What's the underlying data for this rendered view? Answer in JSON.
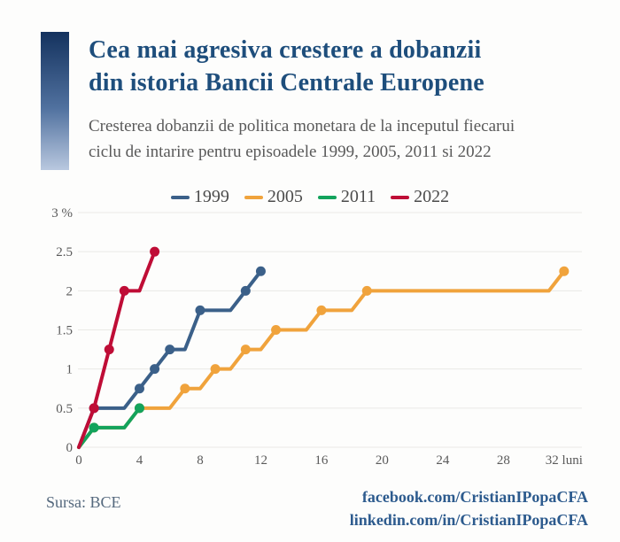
{
  "header": {
    "title_line1": "Cea mai agresiva crestere a dobanzii",
    "title_line2": "din istoria Bancii Centrale Europene",
    "subtitle_line1": "Cresterea dobanzii de politica monetara de la inceputul fiecarui",
    "subtitle_line2": "ciclu de intarire pentru episoadele 1999, 2005, 2011 si 2022"
  },
  "footer": {
    "source": "Sursa: BCE",
    "facebook": "facebook.com/CristianIPopaCFA",
    "linkedin": "linkedin.com/in/CristianIPopaCFA"
  },
  "colors": {
    "background": "#fdfdfc",
    "title": "#1e4e7c",
    "subtitle": "#595959",
    "legend_text": "#4c4c4c",
    "axis_text": "#5a5a5a",
    "grid": "#eae9e6",
    "source_text": "#54687d",
    "links": "#2d5b8e",
    "bar_top": "#14325e",
    "bar_bottom": "#b9c8df"
  },
  "chart_data": {
    "type": "line",
    "title": "Cresterea dobanzii de politica monetara de la inceputul fiecarui ciclu de intarire",
    "xlabel": "luni",
    "ylabel": "%",
    "xlim": [
      0,
      33
    ],
    "ylim": [
      0,
      3
    ],
    "grid": "horizontal",
    "legend_position": "top-center",
    "x_ticks": [
      {
        "value": 0,
        "label": "0"
      },
      {
        "value": 4,
        "label": "4"
      },
      {
        "value": 8,
        "label": "8"
      },
      {
        "value": 12,
        "label": "12"
      },
      {
        "value": 16,
        "label": "16"
      },
      {
        "value": 20,
        "label": "20"
      },
      {
        "value": 24,
        "label": "24"
      },
      {
        "value": 28,
        "label": "28"
      },
      {
        "value": 32,
        "label": "32 luni"
      }
    ],
    "y_ticks": [
      {
        "value": 0,
        "label": "0"
      },
      {
        "value": 0.5,
        "label": "0.5"
      },
      {
        "value": 1,
        "label": "1"
      },
      {
        "value": 1.5,
        "label": "1.5"
      },
      {
        "value": 2,
        "label": "2"
      },
      {
        "value": 2.5,
        "label": "2.5"
      },
      {
        "value": 3,
        "label": "3 %"
      }
    ],
    "series": [
      {
        "name": "1999",
        "color": "#3b6089",
        "points": [
          [
            0,
            0
          ],
          [
            1,
            0.5
          ],
          [
            3,
            0.5
          ],
          [
            4,
            0.75
          ],
          [
            5,
            1
          ],
          [
            6,
            1.25
          ],
          [
            7,
            1.25
          ],
          [
            8,
            1.75
          ],
          [
            10,
            1.75
          ],
          [
            11,
            2
          ],
          [
            12,
            2.25
          ]
        ],
        "markers": [
          [
            1,
            0.5
          ],
          [
            4,
            0.75
          ],
          [
            5,
            1
          ],
          [
            6,
            1.25
          ],
          [
            8,
            1.75
          ],
          [
            11,
            2
          ],
          [
            12,
            2.25
          ]
        ]
      },
      {
        "name": "2005",
        "color": "#f0a33c",
        "points": [
          [
            0,
            0
          ],
          [
            1,
            0.25
          ],
          [
            3,
            0.25
          ],
          [
            4,
            0.5
          ],
          [
            6,
            0.5
          ],
          [
            7,
            0.75
          ],
          [
            8,
            0.75
          ],
          [
            9,
            1
          ],
          [
            10,
            1
          ],
          [
            11,
            1.25
          ],
          [
            12,
            1.25
          ],
          [
            13,
            1.5
          ],
          [
            15,
            1.5
          ],
          [
            16,
            1.75
          ],
          [
            18,
            1.75
          ],
          [
            19,
            2
          ],
          [
            31,
            2
          ],
          [
            32,
            2.25
          ]
        ],
        "markers": [
          [
            1,
            0.25
          ],
          [
            4,
            0.5
          ],
          [
            7,
            0.75
          ],
          [
            9,
            1
          ],
          [
            11,
            1.25
          ],
          [
            13,
            1.5
          ],
          [
            16,
            1.75
          ],
          [
            19,
            2
          ],
          [
            32,
            2.25
          ]
        ]
      },
      {
        "name": "2011",
        "color": "#13a35c",
        "points": [
          [
            0,
            0
          ],
          [
            1,
            0.25
          ],
          [
            3,
            0.25
          ],
          [
            4,
            0.5
          ]
        ],
        "markers": [
          [
            1,
            0.25
          ],
          [
            4,
            0.5
          ]
        ]
      },
      {
        "name": "2022",
        "color": "#bf0d36",
        "points": [
          [
            0,
            0
          ],
          [
            1,
            0.5
          ],
          [
            2,
            1.25
          ],
          [
            3,
            2
          ],
          [
            4,
            2
          ],
          [
            5,
            2.5
          ]
        ],
        "markers": [
          [
            1,
            0.5
          ],
          [
            2,
            1.25
          ],
          [
            3,
            2
          ],
          [
            5,
            2.5
          ]
        ]
      }
    ]
  }
}
